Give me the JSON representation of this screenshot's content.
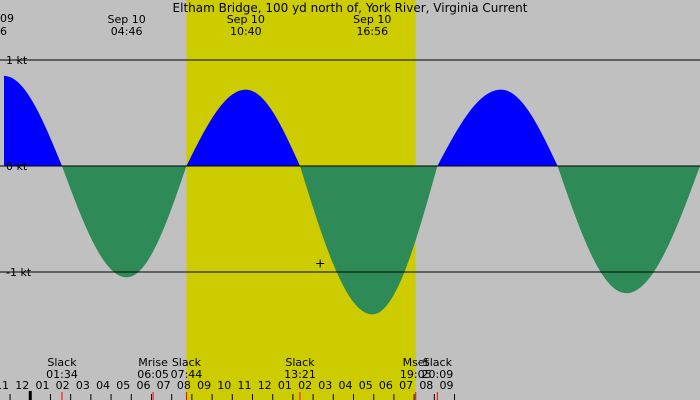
{
  "chart_data": {
    "type": "area",
    "title": "Eltham Bridge, 100 yd north of, York River, Virginia Current",
    "unit": "kt",
    "ylim": [
      -1.5,
      1.1
    ],
    "x_range_hours": [
      -1.3,
      33.15
    ],
    "day_period": [
      7.73,
      19.07
    ],
    "y_axis_labels": [
      {
        "value": 1,
        "label": "1 kt"
      },
      {
        "value": 0,
        "label": "0 kt"
      },
      {
        "value": -1,
        "label": "-1 kt"
      }
    ],
    "tide_events": [
      {
        "date": "Sep 10",
        "time": "04:46",
        "hour": 4.77,
        "type": "ebb",
        "value": -1.05
      },
      {
        "date": "Sep 10",
        "time": "10:40",
        "hour": 10.67,
        "type": "flood",
        "value": 0.72
      },
      {
        "date": "Sep 10",
        "time": "16:56",
        "hour": 16.93,
        "type": "ebb",
        "value": -1.4
      }
    ],
    "curve_points": [
      {
        "hour": -1.3,
        "value": 0.85
      },
      {
        "hour": 1.57,
        "value": 0
      },
      {
        "hour": 4.77,
        "value": -1.05
      },
      {
        "hour": 7.73,
        "value": 0
      },
      {
        "hour": 10.67,
        "value": 0.72
      },
      {
        "hour": 13.35,
        "value": 0
      },
      {
        "hour": 16.93,
        "value": -1.4
      },
      {
        "hour": 20.15,
        "value": 0
      },
      {
        "hour": 23.3,
        "value": 0.72
      },
      {
        "hour": 26.1,
        "value": 0
      },
      {
        "hour": 29.5,
        "value": -1.2
      },
      {
        "hour": 33.15,
        "value": 0
      }
    ],
    "bottom_events": [
      {
        "label": "Slack",
        "time": "01:34",
        "hour": 1.57
      },
      {
        "label": "Mrise",
        "time": "06:05",
        "hour": 6.08
      },
      {
        "label": "Slack",
        "time": "07:44",
        "hour": 7.73
      },
      {
        "label": "Slack",
        "time": "13:21",
        "hour": 13.35
      },
      {
        "label": "Mset",
        "time": "19:05",
        "hour": 19.08
      },
      {
        "label": "Slack",
        "time": "20:09",
        "hour": 20.15
      }
    ],
    "hour_ticks": [
      "11",
      "12",
      "01",
      "02",
      "03",
      "04",
      "05",
      "06",
      "07",
      "08",
      "09",
      "10",
      "11",
      "12",
      "01",
      "02",
      "03",
      "04",
      "05",
      "06",
      "07",
      "08",
      "09"
    ],
    "hour_ticks_start": -1,
    "left_edge_labels": [
      "09",
      "6"
    ],
    "current_time_marker": {
      "hour": 14.35,
      "value": -0.92
    },
    "colors": {
      "background": "#c0c0c0",
      "daylight": "#cccc00",
      "flood": "#0000ff",
      "ebb": "#2e8b57",
      "event_tick": "#ff0000",
      "midnight_tick": "#000000"
    }
  }
}
